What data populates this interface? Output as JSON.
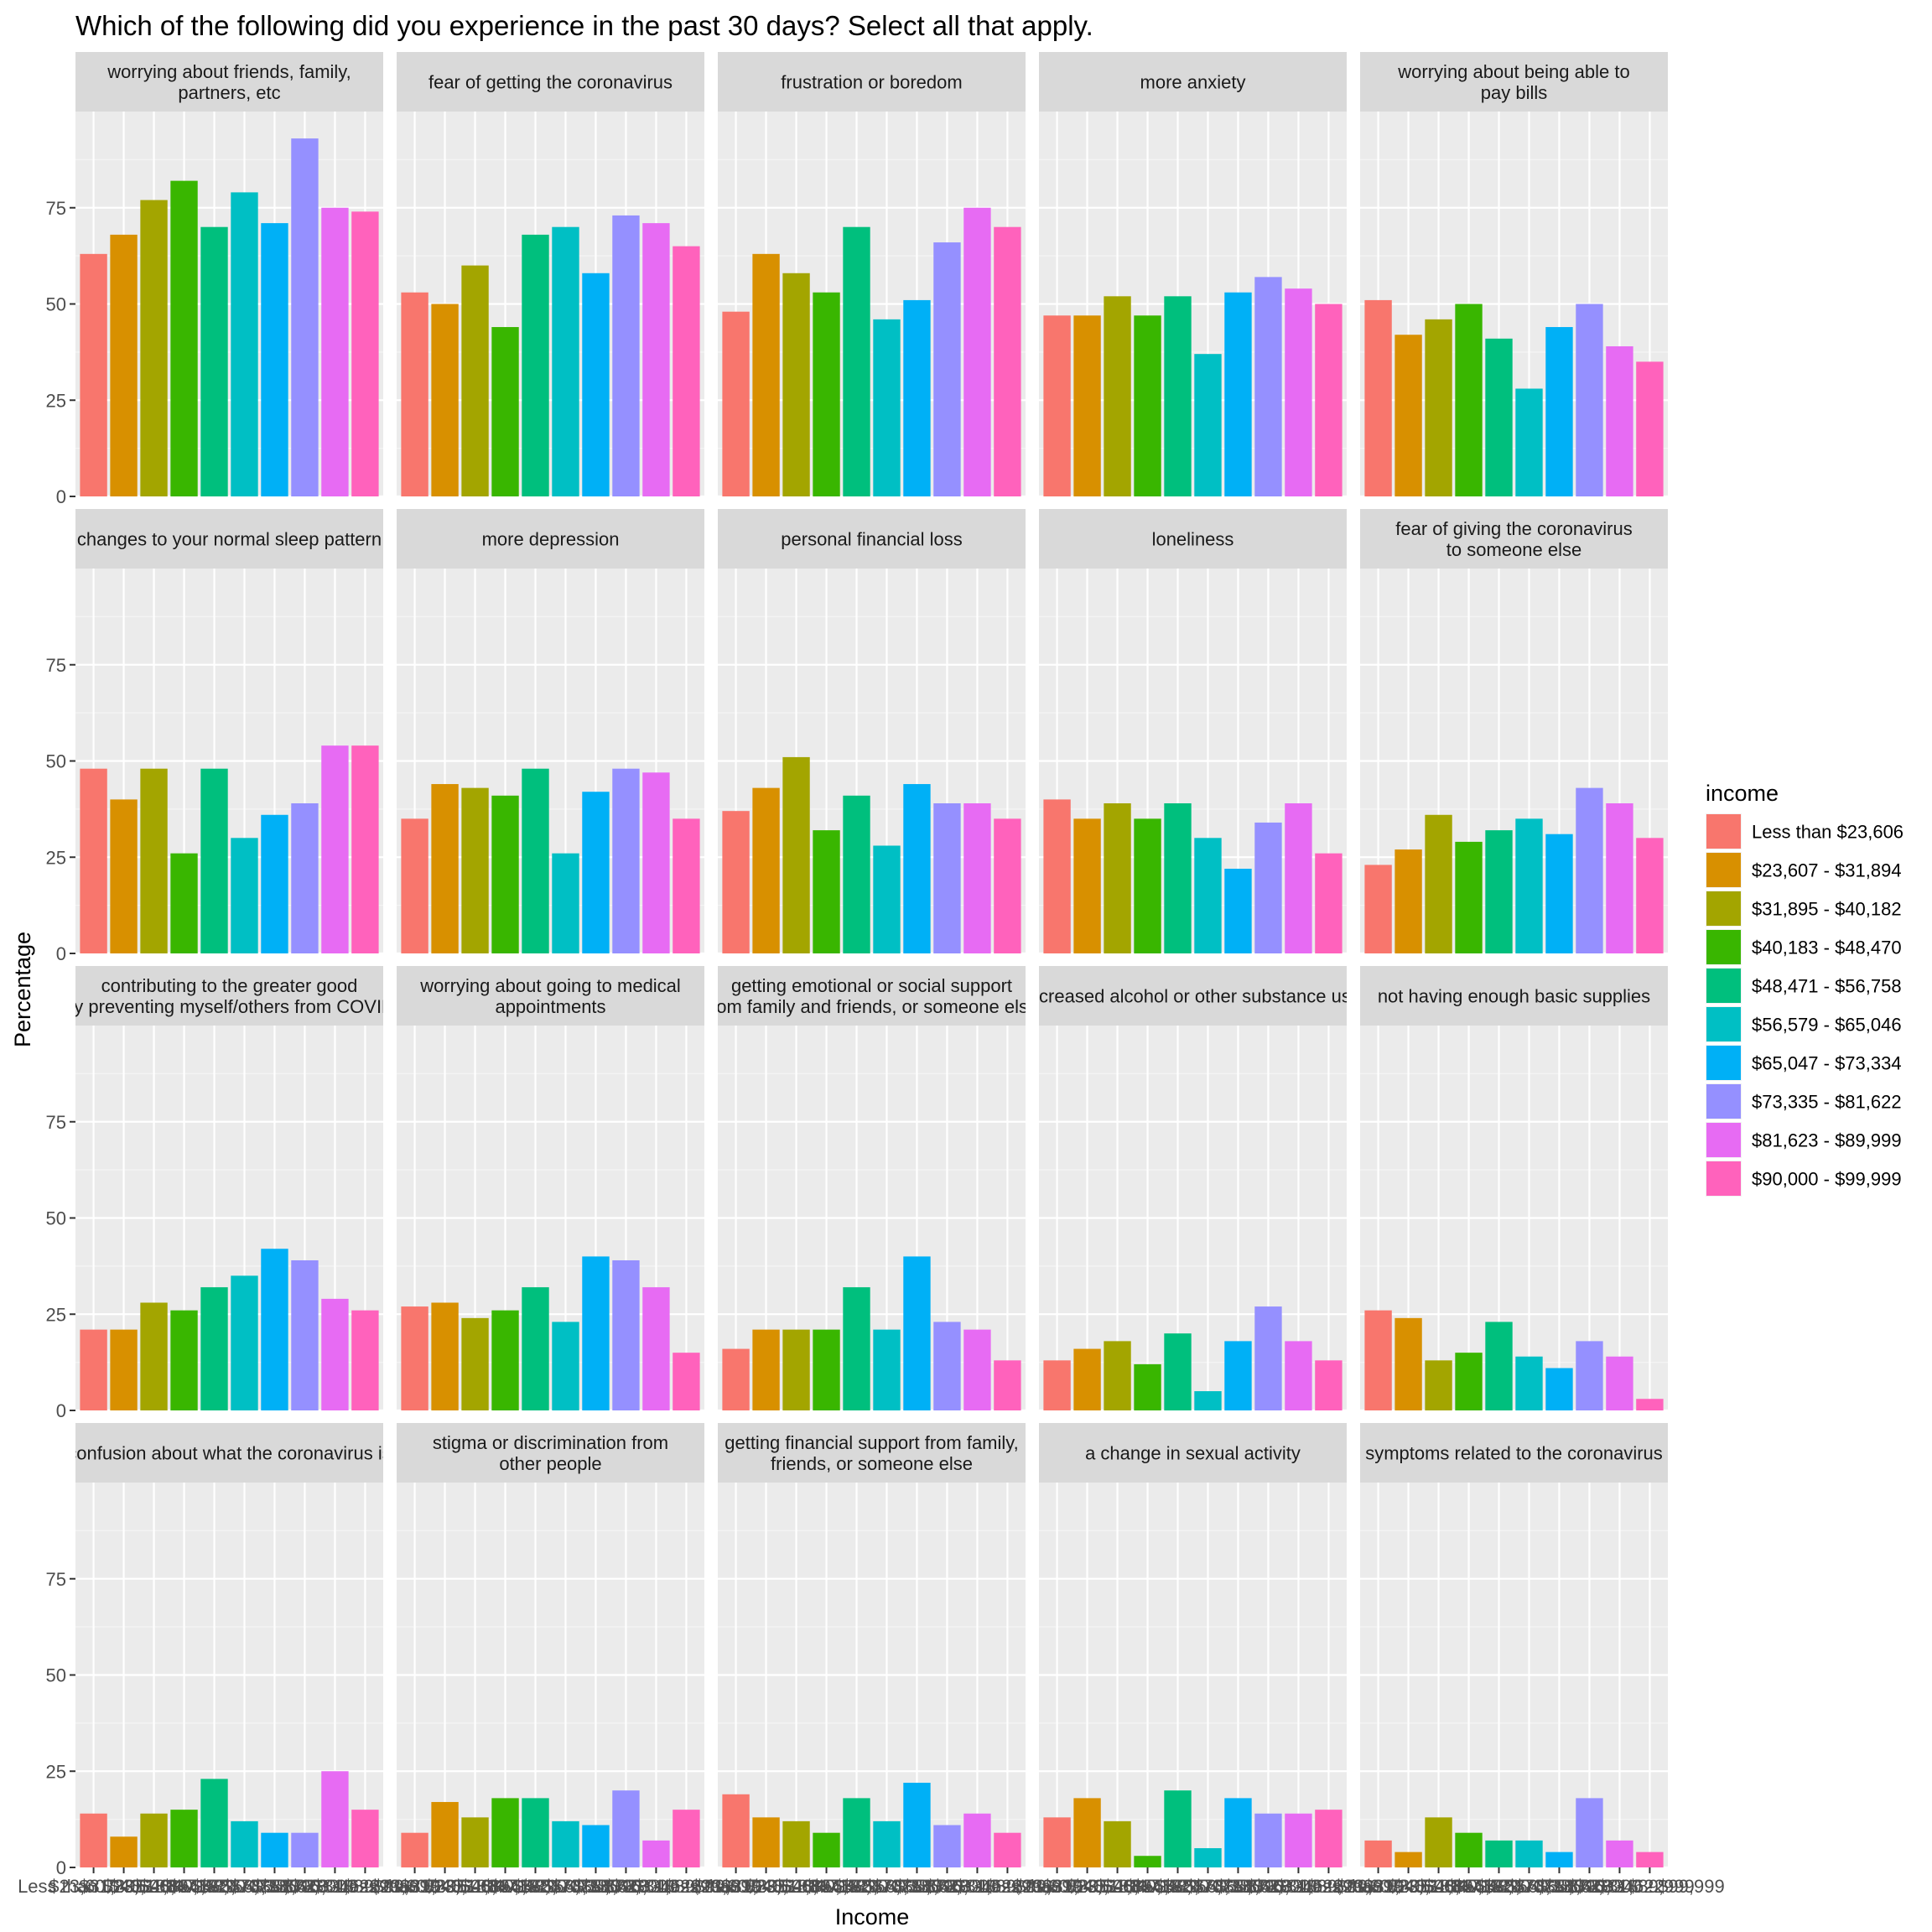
{
  "chart_data": {
    "type": "bar",
    "title": "Which of the following did you experience in the past 30 days? Select all that apply.",
    "xlabel": "Income",
    "ylabel": "Percentage",
    "ylim": [
      0,
      100
    ],
    "yticks": [
      0,
      25,
      50,
      75
    ],
    "ytick_labels": [
      "0",
      "25",
      "50",
      "75"
    ],
    "legend_title": "income",
    "legend_position": "right",
    "categories": [
      "Less than $23,606",
      "$23,607 - $31,894",
      "$31,895 - $40,182",
      "$40,183 - $48,470",
      "$48,471 - $56,758",
      "$56,579 - $65,046",
      "$65,047 - $73,334",
      "$73,335 - $81,622",
      "$81,623 - $89,999",
      "$90,000 - $99,999"
    ],
    "colors": [
      "#F8766D",
      "#D89000",
      "#A3A500",
      "#39B600",
      "#00BF7D",
      "#00BFC4",
      "#00B0F6",
      "#9590FF",
      "#E76BF3",
      "#FF62BC"
    ],
    "facets": [
      {
        "label": [
          "worrying about friends, family,",
          "partners, etc"
        ],
        "values": [
          63,
          68,
          77,
          82,
          70,
          79,
          71,
          93,
          75,
          74
        ]
      },
      {
        "label": [
          "fear of getting the coronavirus"
        ],
        "values": [
          53,
          50,
          60,
          44,
          68,
          70,
          58,
          73,
          71,
          65
        ]
      },
      {
        "label": [
          "frustration or boredom"
        ],
        "values": [
          48,
          63,
          58,
          53,
          70,
          46,
          51,
          66,
          75,
          70
        ]
      },
      {
        "label": [
          "more anxiety"
        ],
        "values": [
          47,
          47,
          52,
          47,
          52,
          37,
          53,
          57,
          54,
          50
        ]
      },
      {
        "label": [
          "worrying about being able to",
          "pay bills"
        ],
        "values": [
          51,
          42,
          46,
          50,
          41,
          28,
          44,
          50,
          39,
          35
        ]
      },
      {
        "label": [
          "changes to your normal sleep pattern"
        ],
        "values": [
          48,
          40,
          48,
          26,
          48,
          30,
          36,
          39,
          54,
          54
        ]
      },
      {
        "label": [
          "more depression"
        ],
        "values": [
          35,
          44,
          43,
          41,
          48,
          26,
          42,
          48,
          47,
          35
        ]
      },
      {
        "label": [
          "personal financial loss"
        ],
        "values": [
          37,
          43,
          51,
          32,
          41,
          28,
          44,
          39,
          39,
          35
        ]
      },
      {
        "label": [
          "loneliness"
        ],
        "values": [
          40,
          35,
          39,
          35,
          39,
          30,
          22,
          34,
          39,
          26
        ]
      },
      {
        "label": [
          "fear of giving the coronavirus",
          "to someone else"
        ],
        "values": [
          23,
          27,
          36,
          29,
          32,
          35,
          31,
          43,
          39,
          30
        ]
      },
      {
        "label": [
          "contributing to the greater good",
          "by preventing myself/others from COVID"
        ],
        "values": [
          21,
          21,
          28,
          26,
          32,
          35,
          42,
          39,
          29,
          26
        ]
      },
      {
        "label": [
          "worrying about going to medical",
          "appointments"
        ],
        "values": [
          27,
          28,
          24,
          26,
          32,
          23,
          40,
          39,
          32,
          15
        ]
      },
      {
        "label": [
          "getting emotional or social support",
          "from family and friends, or someone else"
        ],
        "values": [
          16,
          21,
          21,
          21,
          32,
          21,
          40,
          23,
          21,
          13
        ]
      },
      {
        "label": [
          "increased alcohol or other substance use"
        ],
        "values": [
          13,
          16,
          18,
          12,
          20,
          5,
          18,
          27,
          18,
          13
        ]
      },
      {
        "label": [
          "not having enough basic supplies"
        ],
        "values": [
          26,
          24,
          13,
          15,
          23,
          14,
          11,
          18,
          14,
          3
        ]
      },
      {
        "label": [
          "confusion about what the coronavirus is"
        ],
        "values": [
          14,
          8,
          14,
          15,
          23,
          12,
          9,
          9,
          25,
          15
        ]
      },
      {
        "label": [
          "stigma or discrimination from",
          "other people"
        ],
        "values": [
          9,
          17,
          13,
          18,
          18,
          12,
          11,
          20,
          7,
          15
        ]
      },
      {
        "label": [
          "getting financial support from family,",
          "friends, or someone else"
        ],
        "values": [
          19,
          13,
          12,
          9,
          18,
          12,
          22,
          11,
          14,
          9
        ]
      },
      {
        "label": [
          "a change in sexual activity"
        ],
        "values": [
          13,
          18,
          12,
          3,
          20,
          5,
          18,
          14,
          14,
          15
        ]
      },
      {
        "label": [
          "symptoms related to the coronavirus"
        ],
        "values": [
          7,
          4,
          13,
          9,
          7,
          7,
          4,
          18,
          7,
          4
        ]
      }
    ]
  }
}
